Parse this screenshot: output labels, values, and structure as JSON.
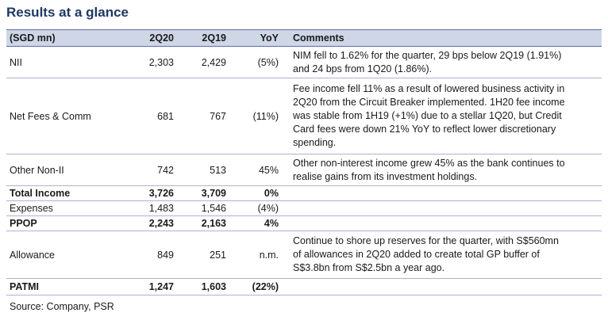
{
  "title": "Results at a glance",
  "headers": [
    "(SGD mn)",
    "2Q20",
    "2Q19",
    "YoY",
    "Comments"
  ],
  "rows": [
    {
      "label": "NII",
      "q20": "2,303",
      "q19": "2,429",
      "yoy": "(5%)",
      "comment": [
        "NIM fell to 1.62% for the quarter, 29 bps below 2Q19 (1.91%)",
        "and 24 bps from 1Q20 (1.86%)."
      ]
    },
    {
      "label": "Net Fees & Comm",
      "q20": "681",
      "q19": "767",
      "yoy": "(11%)",
      "comment": [
        "Fee income fell 11% as a result of lowered business activity in",
        "2Q20 from the Circuit Breaker implemented. 1H20 fee income",
        "was stable from 1H19 (+1%) due to a stellar 1Q20, but Credit",
        "Card fees were down 21% YoY to reflect lower discretionary",
        "spending."
      ]
    },
    {
      "label": "Other Non-II",
      "q20": "742",
      "q19": "513",
      "yoy": "45%",
      "comment": [
        "Other non-interest income grew 45% as the bank continues to",
        "realise gains from its investment holdings."
      ]
    },
    {
      "label": "Total Income",
      "q20": "3,726",
      "q19": "3,709",
      "yoy": "0%",
      "comment": []
    },
    {
      "label": "Expenses",
      "q20": "1,483",
      "q19": "1,546",
      "yoy": "(4%)",
      "comment": []
    },
    {
      "label": "PPOP",
      "q20": "2,243",
      "q19": "2,163",
      "yoy": "4%",
      "comment": []
    },
    {
      "label": "Allowance",
      "q20": "849",
      "q19": "251",
      "yoy": "n.m.",
      "comment": [
        "Continue to shore up reserves for the quarter, with S$560mn",
        "of allowances in 2Q20 added to create total GP buffer of",
        "S$3.8bn from S$2.5bn a year ago."
      ]
    },
    {
      "label": "PATMI",
      "q20": "1,247",
      "q19": "1,603",
      "yoy": "(22%)",
      "comment": []
    }
  ],
  "source": "Source: Company, PSR"
}
